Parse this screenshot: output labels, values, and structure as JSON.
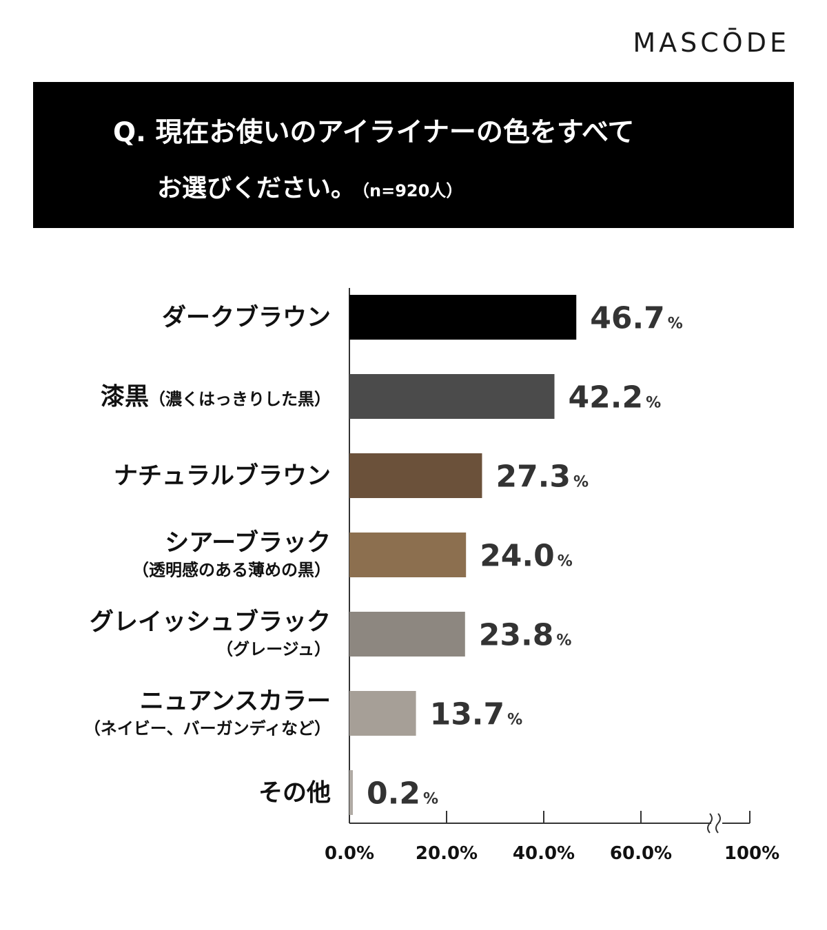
{
  "brand": "MASCŌDE",
  "question": {
    "line1": "Q. 現在お使いのアイライナーの色をすべて",
    "line2": "お選びください。",
    "sample": "（n=920人）"
  },
  "chart_data": {
    "type": "bar",
    "orientation": "horizontal",
    "categories": [
      {
        "main": "ダークブラウン",
        "sub": ""
      },
      {
        "main": "漆黒",
        "sub": "（濃くはっきりした黒）"
      },
      {
        "main": "ナチュラルブラウン",
        "sub": ""
      },
      {
        "main": "シアーブラック",
        "sub": "（透明感のある薄めの黒）"
      },
      {
        "main": "グレイッシュブラック",
        "sub": "（グレージュ）"
      },
      {
        "main": "ニュアンスカラー",
        "sub": "（ネイビー、バーガンディなど）"
      },
      {
        "main": "その他",
        "sub": ""
      }
    ],
    "values": [
      46.7,
      42.2,
      27.3,
      24.0,
      23.8,
      13.7,
      0.2
    ],
    "value_labels": [
      "46.7",
      "42.2",
      "27.3",
      "24.0",
      "23.8",
      "13.7",
      "0.2"
    ],
    "unit": "%",
    "colors": [
      "#000000",
      "#4b4b4b",
      "#6b513a",
      "#8c6f4f",
      "#8d8780",
      "#a69f97",
      "#b0aaa4"
    ],
    "xlim": [
      0,
      100
    ],
    "axis_break": true,
    "ticks": [
      {
        "value": 0,
        "label": "0.0%"
      },
      {
        "value": 20,
        "label": "20.0%"
      },
      {
        "value": 40,
        "label": "40.0%"
      },
      {
        "value": 60,
        "label": "60.0%"
      },
      {
        "value": 100,
        "label": "100%"
      }
    ],
    "grid": false,
    "legend": "none"
  }
}
